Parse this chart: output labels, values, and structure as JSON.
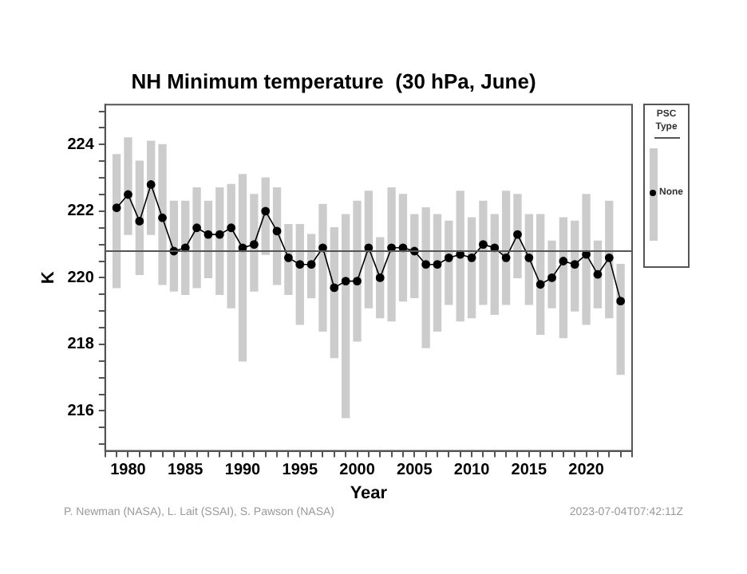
{
  "chart_data": {
    "type": "line",
    "title": "NH Minimum temperature  (30 hPa, June)",
    "xlabel": "Year",
    "ylabel": "K",
    "legend_title": "PSC Type",
    "legend": "right",
    "x": [
      1979,
      1980,
      1981,
      1982,
      1983,
      1984,
      1985,
      1986,
      1987,
      1988,
      1989,
      1990,
      1991,
      1992,
      1993,
      1994,
      1995,
      1996,
      1997,
      1998,
      1999,
      2000,
      2001,
      2002,
      2003,
      2004,
      2005,
      2006,
      2007,
      2008,
      2009,
      2010,
      2011,
      2012,
      2013,
      2014,
      2015,
      2016,
      2017,
      2018,
      2019,
      2020,
      2021,
      2022,
      2023
    ],
    "xlim": [
      1978,
      2024
    ],
    "xticks": [
      {
        "value": 1978,
        "label": null
      },
      {
        "value": 1979,
        "label": null
      },
      1980,
      {
        "value": 1981,
        "label": null
      },
      {
        "value": 1982,
        "label": null
      },
      {
        "value": 1983,
        "label": null
      },
      {
        "value": 1984,
        "label": null
      },
      1985,
      {
        "value": 1986,
        "label": null
      },
      {
        "value": 1987,
        "label": null
      },
      {
        "value": 1988,
        "label": null
      },
      {
        "value": 1989,
        "label": null
      },
      1990,
      {
        "value": 1991,
        "label": null
      },
      {
        "value": 1992,
        "label": null
      },
      {
        "value": 1993,
        "label": null
      },
      {
        "value": 1994,
        "label": null
      },
      1995,
      {
        "value": 1996,
        "label": null
      },
      {
        "value": 1997,
        "label": null
      },
      {
        "value": 1998,
        "label": null
      },
      {
        "value": 1999,
        "label": null
      },
      2000,
      {
        "value": 2001,
        "label": null
      },
      {
        "value": 2002,
        "label": null
      },
      {
        "value": 2003,
        "label": null
      },
      {
        "value": 2004,
        "label": null
      },
      2005,
      {
        "value": 2006,
        "label": null
      },
      {
        "value": 2007,
        "label": null
      },
      {
        "value": 2008,
        "label": null
      },
      {
        "value": 2009,
        "label": null
      },
      2010,
      {
        "value": 2011,
        "label": null
      },
      {
        "value": 2012,
        "label": null
      },
      {
        "value": 2013,
        "label": null
      },
      {
        "value": 2014,
        "label": null
      },
      2015,
      {
        "value": 2016,
        "label": null
      },
      {
        "value": 2017,
        "label": null
      },
      {
        "value": 2018,
        "label": null
      },
      {
        "value": 2019,
        "label": null
      },
      2020,
      {
        "value": 2021,
        "label": null
      },
      {
        "value": 2022,
        "label": null
      },
      {
        "value": 2023,
        "label": null
      },
      {
        "value": 2024,
        "label": null
      }
    ],
    "ylim": [
      214.8,
      225.2
    ],
    "yticks": [
      {
        "value": 215,
        "label": null
      },
      {
        "value": 215.5,
        "label": null
      },
      216,
      {
        "value": 216.5,
        "label": null
      },
      {
        "value": 217,
        "label": null
      },
      {
        "value": 217.5,
        "label": null
      },
      218,
      {
        "value": 218.5,
        "label": null
      },
      {
        "value": 219,
        "label": null
      },
      {
        "value": 219.5,
        "label": null
      },
      220,
      {
        "value": 220.5,
        "label": null
      },
      {
        "value": 221,
        "label": null
      },
      {
        "value": 221.5,
        "label": null
      },
      222,
      {
        "value": 222.5,
        "label": null
      },
      {
        "value": 223,
        "label": null
      },
      {
        "value": 223.5,
        "label": null
      },
      224,
      {
        "value": 224.5,
        "label": null
      },
      {
        "value": 225,
        "label": null
      }
    ],
    "series": [
      {
        "type": "bar",
        "color": "#cccccc",
        "x": [
          1979,
          1980,
          1981,
          1982,
          1983,
          1984,
          1985,
          1986,
          1987,
          1988,
          1989,
          1990,
          1991,
          1992,
          1993,
          1994,
          1995,
          1996,
          1997,
          1998,
          1999,
          2000,
          2001,
          2002,
          2003,
          2004,
          2005,
          2006,
          2007,
          2008,
          2009,
          2010,
          2011,
          2012,
          2013,
          2014,
          2015,
          2016,
          2017,
          2018,
          2019,
          2020,
          2021,
          2022,
          2023
        ],
        "base": [
          219.7,
          221.3,
          220.1,
          221.3,
          219.8,
          219.6,
          219.5,
          219.7,
          220.0,
          219.5,
          219.1,
          217.5,
          219.6,
          220.7,
          219.8,
          219.5,
          218.6,
          219.4,
          218.4,
          217.6,
          215.8,
          218.1,
          219.1,
          218.8,
          218.7,
          219.3,
          219.4,
          217.9,
          218.4,
          219.2,
          218.7,
          218.8,
          219.2,
          218.9,
          219.2,
          220.0,
          219.2,
          218.3,
          219.1,
          218.2,
          219.0,
          218.6,
          219.1,
          218.8,
          217.1
        ],
        "values": [
          4.0,
          2.9,
          3.4,
          2.8,
          4.2,
          2.7,
          2.8,
          3.0,
          2.3,
          3.2,
          3.7,
          5.6,
          2.9,
          2.3,
          2.9,
          2.1,
          3.0,
          1.9,
          3.8,
          3.9,
          6.1,
          4.2,
          3.5,
          2.4,
          4.0,
          3.2,
          2.5,
          4.2,
          3.5,
          2.5,
          3.9,
          3.0,
          3.1,
          3.0,
          3.4,
          2.5,
          2.7,
          3.6,
          2.0,
          3.6,
          2.7,
          3.9,
          2.0,
          3.5,
          3.3
        ]
      },
      {
        "name": "None",
        "color": "#000000",
        "marker": "circle",
        "values": [
          222.1,
          222.5,
          221.7,
          222.8,
          221.8,
          220.8,
          220.9,
          221.5,
          221.3,
          221.3,
          221.5,
          220.9,
          221.0,
          222.0,
          221.4,
          220.6,
          220.4,
          220.4,
          220.9,
          219.7,
          219.9,
          219.9,
          220.9,
          220.0,
          220.9,
          220.9,
          220.8,
          220.4,
          220.4,
          220.6,
          220.7,
          220.6,
          221.0,
          220.9,
          220.6,
          221.3,
          220.6,
          219.8,
          220.0,
          220.5,
          220.4,
          220.7,
          220.1,
          220.6,
          219.3
        ]
      }
    ],
    "ref_lines": [
      {
        "axis": "y",
        "value": 220.8,
        "color": "#555555"
      }
    ],
    "annotations": [
      "P. Newman (NASA), L. Lait (SSAI), S. Pawson (NASA)",
      "2023-07-04T07:42:11Z"
    ]
  }
}
